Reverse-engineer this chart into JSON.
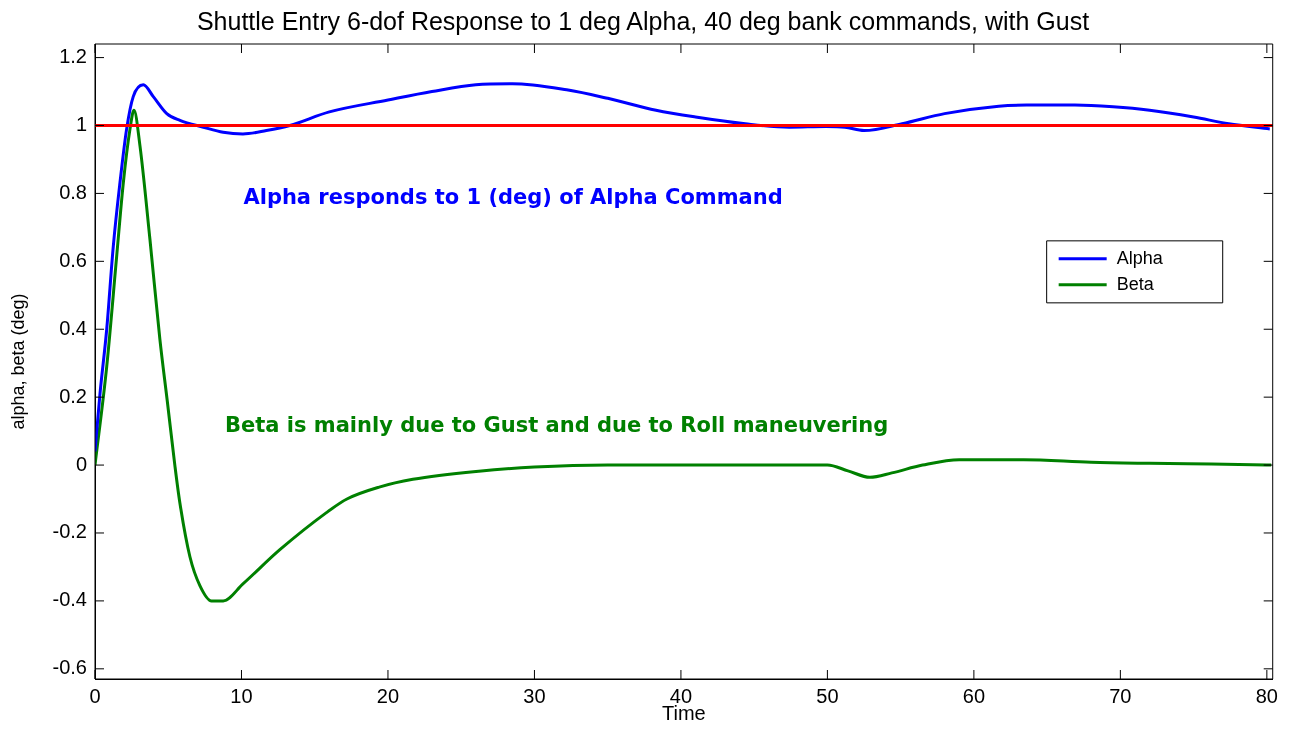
{
  "chart_data": {
    "type": "line",
    "title": "Shuttle Entry 6-dof Response to 1 deg Alpha, 40 deg bank commands, with Gust",
    "xlabel": "Time",
    "ylabel": "alpha, beta (deg)",
    "series": [
      {
        "name": "Alpha",
        "color": "#0000ff",
        "x": [
          0,
          0.34,
          0.8,
          1.25,
          1.7,
          2.16,
          2.61,
          3.3,
          3.98,
          4.9,
          5.8,
          7.4,
          8.75,
          10.1,
          11.7,
          13.3,
          16,
          20,
          23,
          26,
          28.5,
          32.2,
          35,
          38.3,
          41,
          44.4,
          47.4,
          49.9,
          51.2,
          52.5,
          55.1,
          58,
          61.7,
          63.6,
          66.9,
          69.5,
          72,
          75,
          77.4,
          80.2
        ],
        "values": [
          0.04,
          0.21,
          0.4,
          0.645,
          0.83,
          0.99,
          1.085,
          1.12,
          1.085,
          1.035,
          1.015,
          0.995,
          0.98,
          0.975,
          0.985,
          1,
          1.04,
          1.075,
          1.1,
          1.12,
          1.123,
          1.105,
          1.08,
          1.045,
          1.025,
          1.005,
          0.995,
          0.997,
          0.995,
          0.985,
          1.005,
          1.035,
          1.057,
          1.06,
          1.06,
          1.055,
          1.045,
          1.025,
          1.005,
          0.99
        ]
      },
      {
        "name": "Beta",
        "color": "#008000",
        "x": [
          0,
          0.8,
          1.48,
          1.93,
          2.39,
          2.66,
          3.07,
          3.75,
          4.43,
          4.93,
          5.45,
          5.79,
          6.48,
          7.16,
          7.95,
          8.75,
          10.1,
          12.6,
          15.8,
          17.2,
          19.4,
          21.7,
          26.2,
          30,
          35,
          40,
          45,
          50,
          51.4,
          52.9,
          54.4,
          56.5,
          59,
          63.4,
          68,
          72,
          76.2,
          80.3
        ],
        "values": [
          0,
          0.29,
          0.615,
          0.83,
          0.99,
          1.045,
          0.94,
          0.665,
          0.37,
          0.19,
          0,
          -0.11,
          -0.27,
          -0.355,
          -0.4,
          -0.4,
          -0.35,
          -0.25,
          -0.14,
          -0.1,
          -0.065,
          -0.042,
          -0.018,
          -0.006,
          0,
          0,
          0,
          0,
          -0.017,
          -0.036,
          -0.023,
          0,
          0.016,
          0.016,
          0.008,
          0.005,
          0.003,
          0
        ]
      }
    ],
    "xlim": [
      0,
      80.4
    ],
    "ylim": [
      -0.63,
      1.24
    ],
    "xticks": [
      0,
      10,
      20,
      30,
      40,
      50,
      60,
      70,
      80
    ],
    "yticks": [
      -0.6,
      -0.4,
      -0.2,
      0,
      0.2,
      0.4,
      0.6,
      0.8,
      1,
      1.2
    ],
    "ref_lines": [
      {
        "axis": "y",
        "value": 1,
        "color": "#ff0000"
      }
    ],
    "annotations": [
      "Alpha responds to 1 (deg) of Alpha Command",
      "Beta is mainly due to Gust and due to Roll maneuvering"
    ],
    "grid": false,
    "legend": "right"
  }
}
